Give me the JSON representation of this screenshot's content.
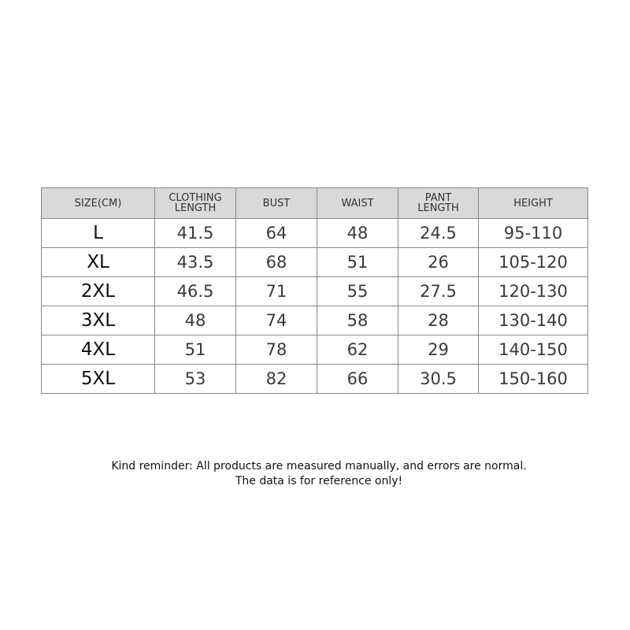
{
  "table": {
    "headers": [
      "SIZE(CM)",
      "CLOTHING LENGTH",
      "BUST",
      "WAIST",
      "PANT LENGTH",
      "HEIGHT"
    ],
    "rows": [
      [
        "L",
        "41.5",
        "64",
        "48",
        "24.5",
        "95-110"
      ],
      [
        "XL",
        "43.5",
        "68",
        "51",
        "26",
        "105-120"
      ],
      [
        "2XL",
        "46.5",
        "71",
        "55",
        "27.5",
        "120-130"
      ],
      [
        "3XL",
        "48",
        "74",
        "58",
        "28",
        "130-140"
      ],
      [
        "4XL",
        "51",
        "78",
        "62",
        "29",
        "140-150"
      ],
      [
        "5XL",
        "53",
        "82",
        "66",
        "30.5",
        "150-160"
      ]
    ]
  },
  "note": {
    "line1": "Kind reminder: All products are measured manually, and errors are normal.",
    "line2": "The data is for reference only!"
  },
  "colors": {
    "header_bg": "#d9d9d9",
    "border": "#8a8a8a"
  }
}
